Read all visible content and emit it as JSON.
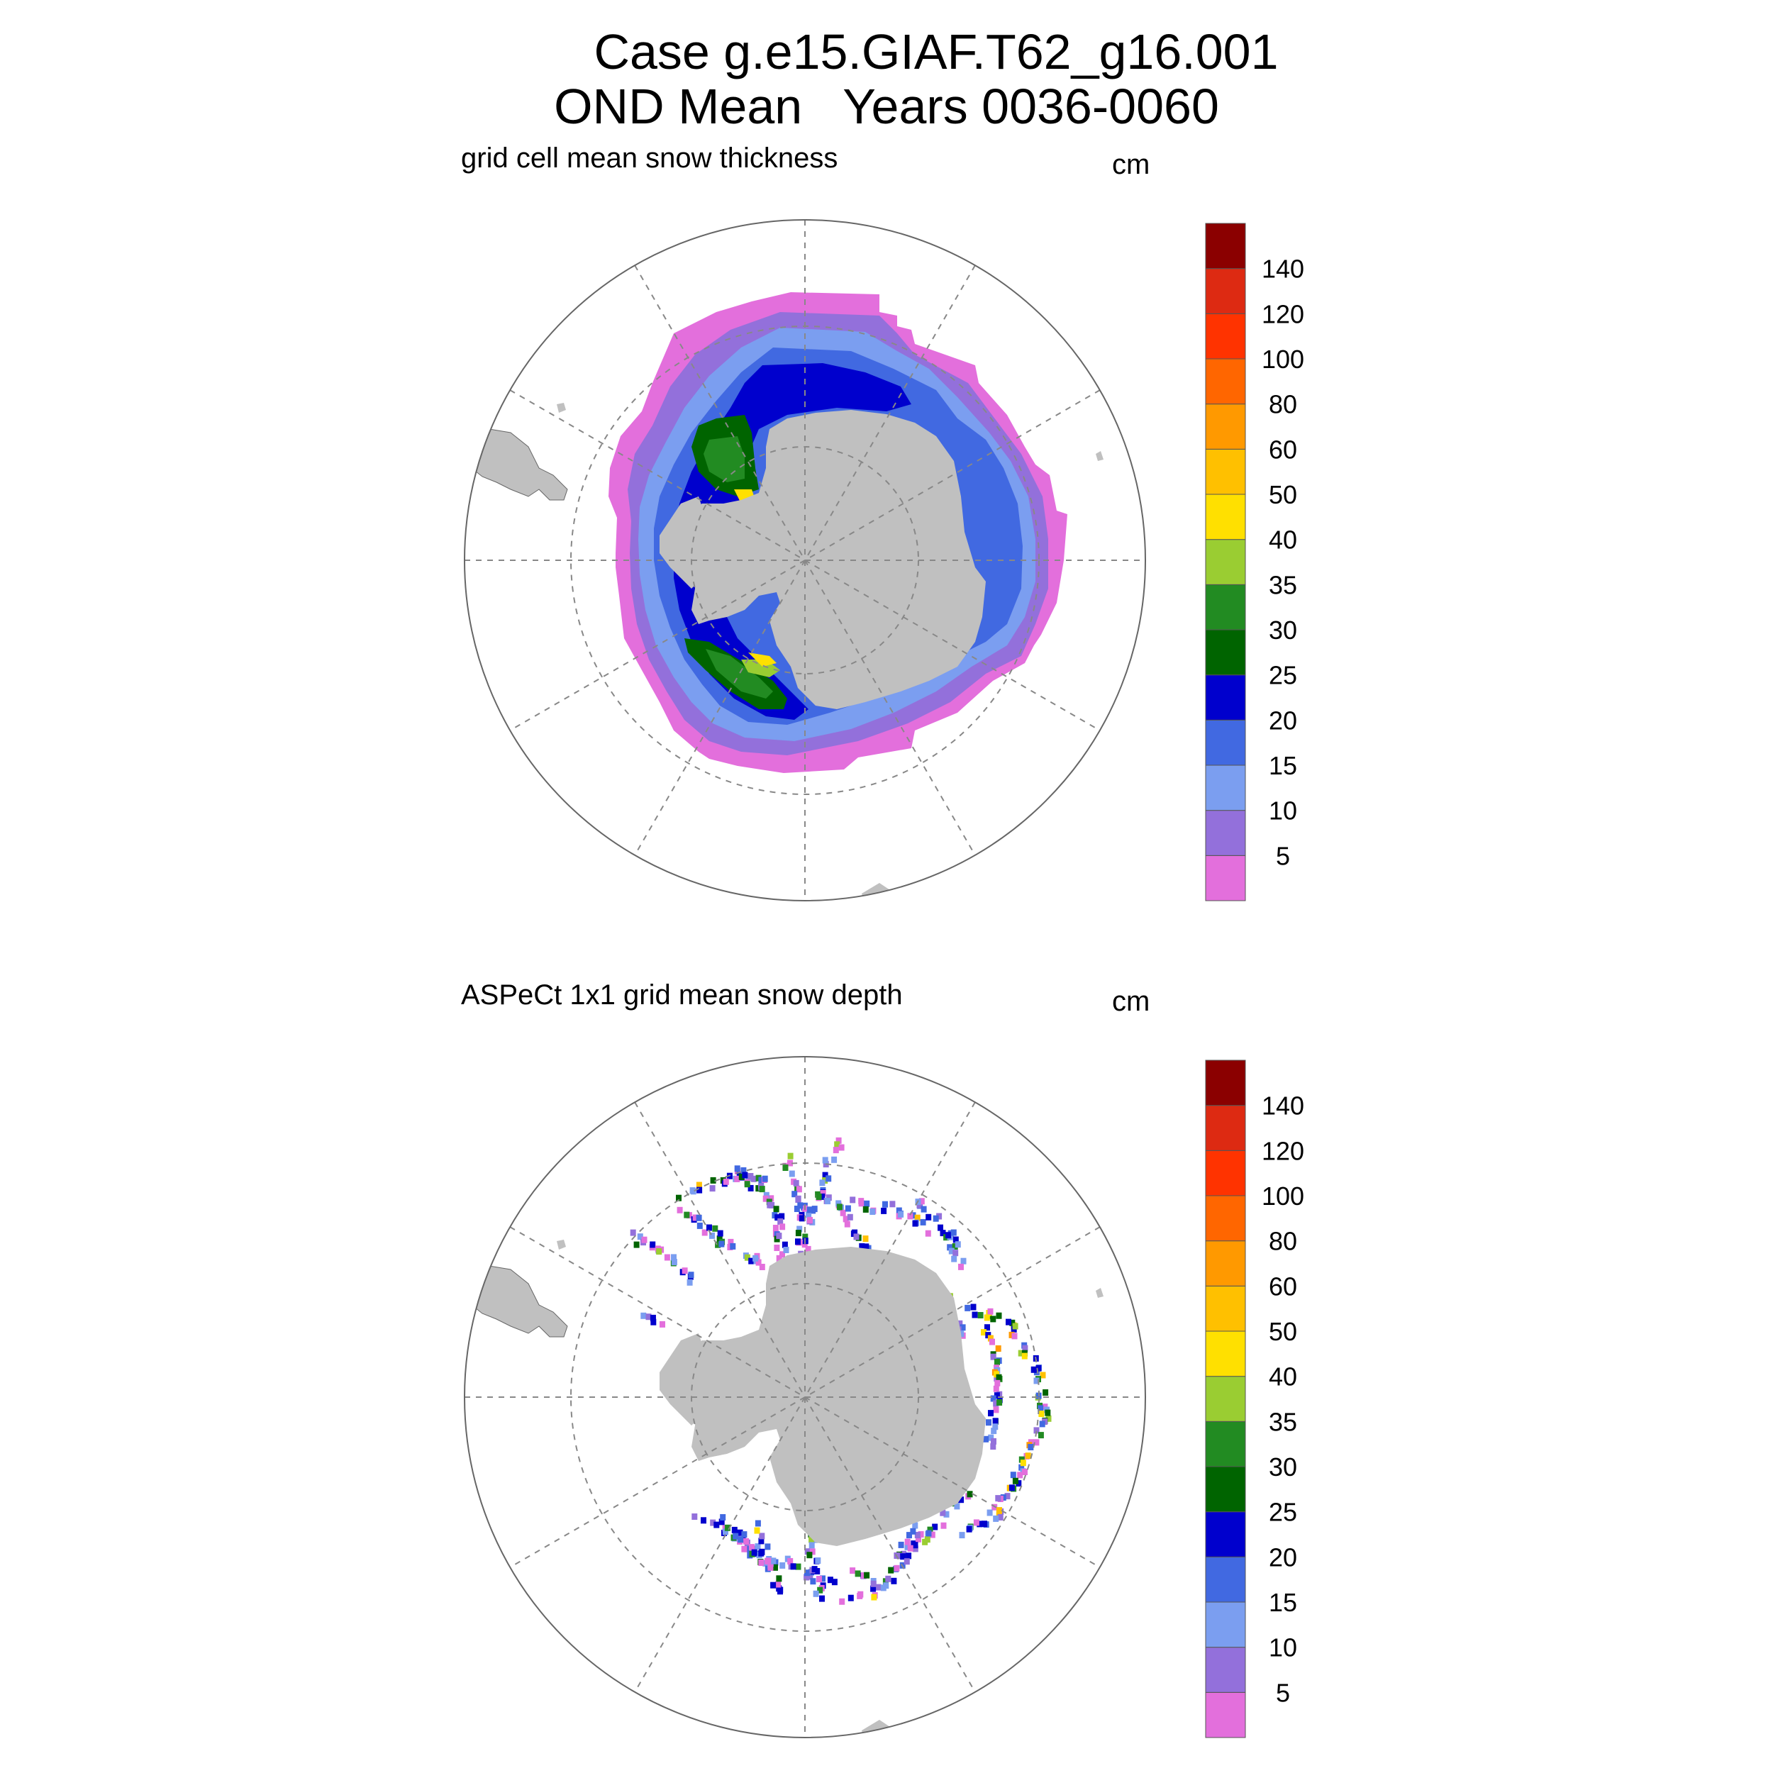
{
  "title": {
    "line1": "Case g.e15.GIAF.T62_g16.001",
    "line2": "OND Mean   Years 0036-0060"
  },
  "panels": [
    {
      "label": "grid cell mean snow thickness",
      "units": "cm",
      "field": "model",
      "colorbar": {
        "levels": [
          "5",
          "10",
          "15",
          "20",
          "25",
          "30",
          "35",
          "40",
          "50",
          "60",
          "80",
          "100",
          "120",
          "140"
        ],
        "colors": [
          "#e36fdc",
          "#9370db",
          "#7b9ef0",
          "#4169e1",
          "#0000cd",
          "#006400",
          "#228b22",
          "#9acd32",
          "#ffe000",
          "#ffc000",
          "#ff9900",
          "#ff6600",
          "#ff3300",
          "#dd2a12",
          "#8b0000"
        ]
      }
    },
    {
      "label": "ASPeCt 1x1 grid mean snow depth",
      "units": "cm",
      "field": "observations",
      "colorbar": {
        "levels": [
          "5",
          "10",
          "15",
          "20",
          "25",
          "30",
          "35",
          "40",
          "50",
          "60",
          "80",
          "100",
          "120",
          "140"
        ],
        "colors": [
          "#e36fdc",
          "#9370db",
          "#7b9ef0",
          "#4169e1",
          "#0000cd",
          "#006400",
          "#228b22",
          "#9acd32",
          "#ffe000",
          "#ffc000",
          "#ff9900",
          "#ff6600",
          "#ff3300",
          "#dd2a12",
          "#8b0000"
        ]
      }
    }
  ],
  "map": {
    "projection": "south polar stereographic",
    "land_color": "#c0c0c0",
    "grid_color": "#888888"
  }
}
